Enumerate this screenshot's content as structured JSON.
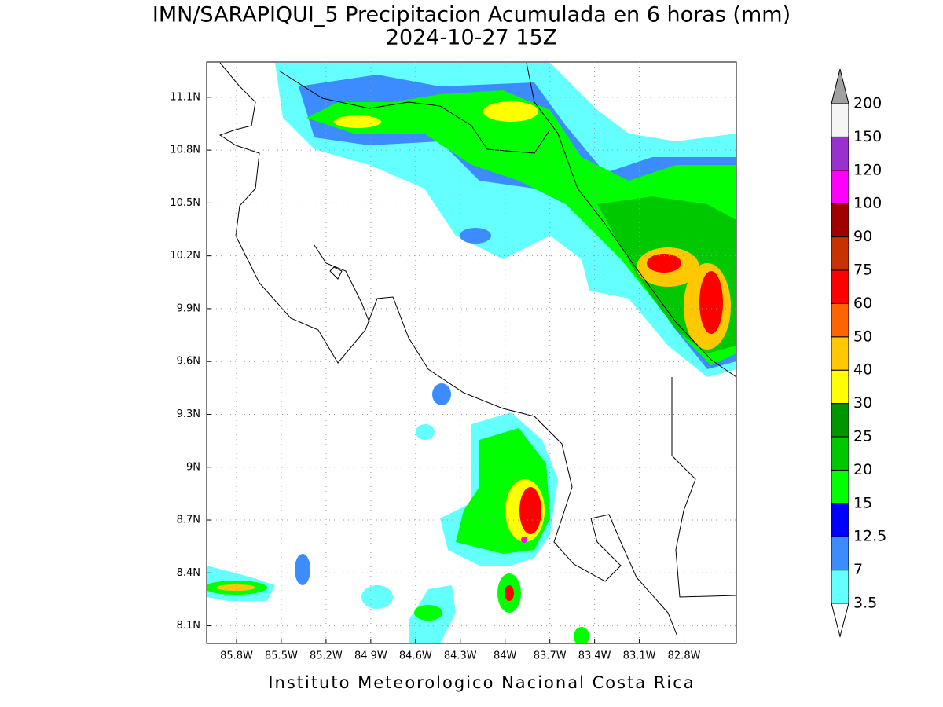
{
  "map": {
    "title": "IMN/SARAPIQUI_5 Precipitacion Acumulada en 6 horas (mm)",
    "subtitle": "2024-10-27 15Z",
    "xlim": [
      -86.0,
      -82.45
    ],
    "ylim": [
      8.0,
      11.3
    ],
    "xticks": [
      {
        "value": -85.8,
        "label": "85.8W"
      },
      {
        "value": -85.5,
        "label": "85.5W"
      },
      {
        "value": -85.2,
        "label": "85.2W"
      },
      {
        "value": -84.9,
        "label": "84.9W"
      },
      {
        "value": -84.6,
        "label": "84.6W"
      },
      {
        "value": -84.3,
        "label": "84.3W"
      },
      {
        "value": -84.0,
        "label": "84W"
      },
      {
        "value": -83.7,
        "label": "83.7W"
      },
      {
        "value": -83.4,
        "label": "83.4W"
      },
      {
        "value": -83.1,
        "label": "83.1W"
      },
      {
        "value": -82.8,
        "label": "82.8W"
      }
    ],
    "yticks": [
      {
        "value": 8.1,
        "label": "8.1N"
      },
      {
        "value": 8.4,
        "label": "8.4N"
      },
      {
        "value": 8.7,
        "label": "8.7N"
      },
      {
        "value": 9.0,
        "label": "9N"
      },
      {
        "value": 9.3,
        "label": "9.3N"
      },
      {
        "value": 9.6,
        "label": "9.6N"
      },
      {
        "value": 9.9,
        "label": "9.9N"
      },
      {
        "value": 10.2,
        "label": "10.2N"
      },
      {
        "value": 10.5,
        "label": "10.5N"
      },
      {
        "value": 10.8,
        "label": "10.8N"
      },
      {
        "value": 11.1,
        "label": "11.1N"
      }
    ],
    "grid": true,
    "colorbar": {
      "levels": [
        3.5,
        7,
        12.5,
        15,
        20,
        25,
        30,
        40,
        50,
        60,
        75,
        90,
        100,
        120,
        150,
        200
      ],
      "colors": [
        "#64ffff",
        "#3c8cff",
        "#0000ff",
        "#00ff00",
        "#00c800",
        "#009600",
        "#ffff00",
        "#ffc800",
        "#ff6400",
        "#ff0000",
        "#c83200",
        "#a00000",
        "#ff00ff",
        "#9932cc",
        "#f5f5f5"
      ],
      "over_color": "#a0a0a0",
      "under_color": "#ffffff"
    },
    "footer": "Instituto Meteorologico Nacional Costa Rica"
  }
}
